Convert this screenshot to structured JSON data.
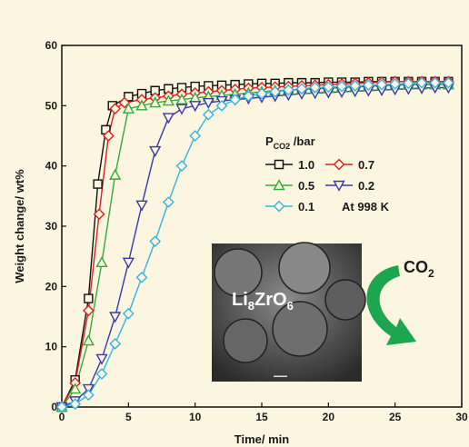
{
  "chart_data": {
    "type": "line",
    "x_label": "Time/ min",
    "y_label": "Weight change/ wt%",
    "xlim": [
      0,
      30
    ],
    "ylim": [
      0,
      60
    ],
    "xticks": [
      0,
      5,
      10,
      15,
      20,
      25,
      30
    ],
    "yticks": [
      0,
      10,
      20,
      30,
      40,
      50,
      60
    ],
    "legend_title": {
      "main": "P",
      "sub": "CO2",
      "rest": " /bar"
    },
    "annotation": "At 998 K",
    "inset_label": {
      "a": "Li",
      "b": "8",
      "c": "ZrO",
      "d": "6"
    },
    "arrow_label": {
      "main": "CO",
      "sub": "2"
    },
    "series": [
      {
        "name": "1.0",
        "color": "#111111",
        "marker": "square",
        "x": [
          0,
          1,
          2,
          2.7,
          3.3,
          3.8,
          5,
          6,
          7,
          8,
          9,
          10,
          11,
          12,
          13,
          14,
          15,
          16,
          17,
          18,
          19,
          20,
          21,
          22,
          23,
          24,
          25,
          26,
          27,
          28,
          29
        ],
        "values": [
          0,
          4.5,
          18,
          37,
          46,
          50,
          51.5,
          52,
          52.5,
          52.8,
          53,
          53.2,
          53.3,
          53.4,
          53.5,
          53.6,
          53.7,
          53.7,
          53.8,
          53.8,
          53.8,
          53.9,
          53.9,
          53.9,
          54,
          54,
          54,
          54,
          54,
          54,
          54
        ]
      },
      {
        "name": "0.7",
        "color": "#e02020",
        "marker": "diamond",
        "x": [
          0,
          1,
          2,
          2.8,
          3.5,
          4,
          4.7,
          6,
          7,
          8,
          9,
          10,
          11,
          12,
          13,
          14,
          15,
          16,
          17,
          18,
          19,
          20,
          21,
          22,
          23,
          24,
          25,
          26,
          27,
          28,
          29
        ],
        "values": [
          0,
          4,
          16,
          32,
          45,
          49.5,
          50.5,
          51,
          51.3,
          51.6,
          51.9,
          52.1,
          52.3,
          52.5,
          52.7,
          52.9,
          53,
          53.1,
          53.2,
          53.3,
          53.4,
          53.5,
          53.6,
          53.7,
          53.8,
          53.9,
          54,
          54,
          54,
          54,
          54
        ]
      },
      {
        "name": "0.5",
        "color": "#2fae3a",
        "marker": "triangle-up",
        "x": [
          0,
          1,
          2,
          3,
          4,
          5,
          6,
          7,
          8,
          9,
          10,
          11,
          12,
          13,
          14,
          15,
          16,
          17,
          18,
          19,
          20,
          21,
          22,
          23,
          24,
          25,
          26,
          27,
          28,
          29
        ],
        "values": [
          0,
          3,
          11,
          24,
          38.5,
          49.5,
          50,
          50.5,
          50.8,
          51,
          51.3,
          51.5,
          51.7,
          51.9,
          52.1,
          52.3,
          52.5,
          52.6,
          52.7,
          52.8,
          52.9,
          53,
          53.1,
          53.2,
          53.3,
          53.4,
          53.5,
          53.5,
          53.5,
          53.5
        ]
      },
      {
        "name": "0.2",
        "color": "#3a3aa8",
        "marker": "triangle-down",
        "x": [
          0,
          1,
          2,
          3,
          4,
          5,
          6,
          7,
          8,
          9,
          10,
          11,
          12,
          13,
          14,
          15,
          16,
          17,
          18,
          19,
          20,
          21,
          22,
          23,
          24,
          25,
          26,
          27,
          28,
          29
        ],
        "values": [
          0,
          1,
          3,
          8,
          15,
          24,
          33.5,
          42.5,
          48,
          49.5,
          50,
          50.5,
          50.8,
          51,
          51.2,
          51.4,
          51.6,
          51.8,
          52,
          52.1,
          52.2,
          52.3,
          52.4,
          52.5,
          52.6,
          52.7,
          52.8,
          52.9,
          53,
          53
        ]
      },
      {
        "name": "0.1",
        "color": "#33b5e5",
        "marker": "diamond",
        "x": [
          0,
          1,
          2,
          3,
          4,
          5,
          6,
          7,
          8,
          9,
          10,
          11,
          12,
          13,
          14,
          15,
          16,
          17,
          18,
          19,
          20,
          21,
          22,
          23,
          24,
          25,
          26,
          27,
          28,
          29
        ],
        "values": [
          0,
          0.5,
          2,
          5.5,
          10.5,
          15.5,
          21.5,
          27.5,
          34,
          40,
          45,
          48.5,
          50,
          51,
          51.6,
          52,
          52.3,
          52.6,
          52.8,
          53,
          53.1,
          53.2,
          53.3,
          53.4,
          53.5,
          53.6,
          53.7,
          53.8,
          53.8,
          53.8
        ]
      }
    ]
  }
}
